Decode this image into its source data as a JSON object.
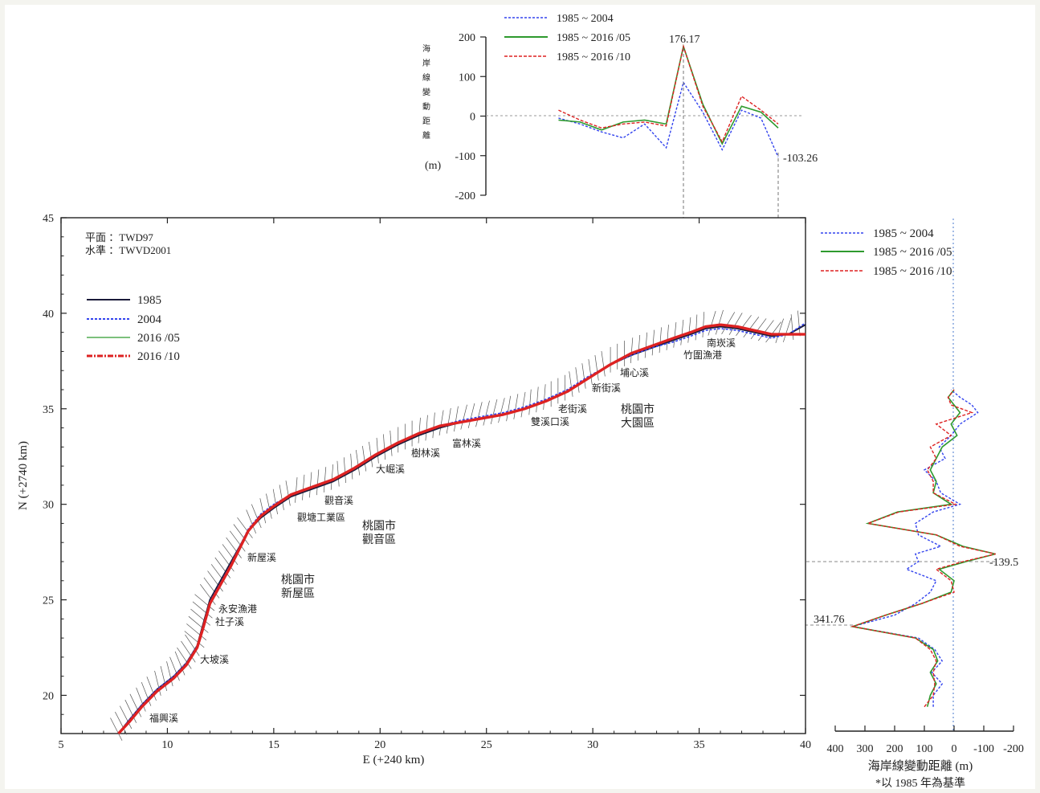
{
  "top_chart": {
    "ylabel_glyphs": [
      "海",
      "岸",
      "線",
      "變",
      "動",
      "距",
      "離"
    ],
    "ylabel_unit": "(m)",
    "y_ticks": [
      "200",
      "100",
      "0",
      "-100",
      "-200"
    ],
    "ylim": [
      -200,
      200
    ],
    "legend": [
      "1985 ~ 2004",
      "1985 ~ 2016 /05",
      "1985 ~ 2016 /10"
    ],
    "annotation_max": "176.17",
    "annotation_min": "-103.26"
  },
  "map_chart": {
    "datum_plane": "平面 ：TWD97",
    "datum_level": "水準 ：TWVD2001",
    "xlabel": "E (+240 km)",
    "ylabel": "N (+2740 km)",
    "x_ticks": [
      "5",
      "10",
      "15",
      "20",
      "25",
      "30",
      "35",
      "40"
    ],
    "y_ticks": [
      "20",
      "25",
      "30",
      "35",
      "40",
      "45"
    ],
    "xlim": [
      5,
      40
    ],
    "ylim": [
      18,
      45
    ],
    "legend": [
      "1985",
      "2004",
      "2016 /05",
      "2016 /10"
    ],
    "place_labels": {
      "yongan": "永安漁港",
      "xinwu": "新屋溪",
      "guanyin_river": "觀音溪",
      "daku": "大崛溪",
      "shulin": "樹林溪",
      "fulin": "富林溪",
      "shuangxi": "雙溪口溪",
      "laojie": "老街溪",
      "xinjie": "新街溪",
      "kengkou": "埔心溪",
      "nankan": "南崁溪",
      "zhuwei": "竹圍漁港",
      "shezi": "社子溪",
      "dahan": "大坡溪",
      "fuxing": "福興溪",
      "industrial": "觀塘工業區",
      "dayuan_1": "桃園市",
      "dayuan_2": "大園區",
      "guanyin_1": "桃園市",
      "guanyin_2": "觀音區",
      "xinwu_1": "桃園市",
      "xinwu_2": "新屋區"
    }
  },
  "side_chart": {
    "legend": [
      "1985 ~ 2004",
      "1985 ~ 2016 /05",
      "1985 ~ 2016 /10"
    ],
    "x_ticks": [
      "400",
      "300",
      "200",
      "100",
      "0",
      "-100",
      "-200"
    ],
    "xlabel": "海岸線變動距離 (m)",
    "note": "*以 1985 年為基準",
    "annotation_neg": "-139.5",
    "annotation_pos": "341.76"
  },
  "colors": {
    "c1985": "#1a1a3a",
    "c2004": "#3344ee",
    "c201605": "#2e9a2e",
    "c201610": "#dd2222",
    "hatch": "#555555"
  },
  "chart_data": [
    {
      "type": "line",
      "title": "",
      "xlabel": "",
      "ylabel": "海岸線變動距離 (m)",
      "ylim": [
        -200,
        200
      ],
      "x": [
        28.5,
        29.5,
        30.5,
        31.5,
        32.5,
        33.5,
        34.3,
        35.2,
        36.1,
        37.0,
        37.9,
        38.7
      ],
      "series": [
        {
          "name": "1985 ~ 2004",
          "values": [
            -5,
            -20,
            -40,
            -55,
            -20,
            -80,
            85,
            10,
            -85,
            15,
            -5,
            -103.26
          ]
        },
        {
          "name": "1985 ~ 2016 /05",
          "values": [
            -10,
            -15,
            -35,
            -15,
            -10,
            -20,
            176.17,
            30,
            -70,
            25,
            10,
            -30
          ]
        },
        {
          "name": "1985 ~ 2016 /10",
          "values": [
            15,
            -10,
            -30,
            -20,
            -15,
            -25,
            176.17,
            25,
            -65,
            50,
            15,
            -20
          ]
        }
      ]
    },
    {
      "type": "line",
      "title": "",
      "xlabel": "E (+240 km)",
      "ylabel": "N (+2740 km)",
      "xlim": [
        5,
        40
      ],
      "ylim": [
        18,
        45
      ],
      "x": [
        7.7,
        8.2,
        8.8,
        9.5,
        10.3,
        10.9,
        11.4,
        11.7,
        12.0,
        12.5,
        13.0,
        13.4,
        13.8,
        14.4,
        15.0,
        15.8,
        16.8,
        17.8,
        18.8,
        19.8,
        20.8,
        21.8,
        22.8,
        23.8,
        24.8,
        25.8,
        26.8,
        27.8,
        28.8,
        29.8,
        30.8,
        31.8,
        32.8,
        33.8,
        34.6,
        35.3,
        36.0,
        36.8,
        37.6,
        38.4,
        39.2,
        40.0
      ],
      "series": [
        {
          "name": "1985",
          "values": [
            18.0,
            18.7,
            19.5,
            20.3,
            21.0,
            21.7,
            22.6,
            23.8,
            25.0,
            26.0,
            27.0,
            27.8,
            28.6,
            29.3,
            29.8,
            30.4,
            30.8,
            31.2,
            31.8,
            32.5,
            33.1,
            33.6,
            34.0,
            34.3,
            34.5,
            34.7,
            35.0,
            35.4,
            35.9,
            36.6,
            37.3,
            37.8,
            38.2,
            38.6,
            38.9,
            39.2,
            39.3,
            39.2,
            39.0,
            38.8,
            38.9,
            39.4
          ]
        },
        {
          "name": "2004",
          "values": [
            18.0,
            18.7,
            19.5,
            20.3,
            21.0,
            21.7,
            22.6,
            23.7,
            24.9,
            25.9,
            26.9,
            27.8,
            28.7,
            29.5,
            30.0,
            30.5,
            30.9,
            31.3,
            31.9,
            32.6,
            33.2,
            33.7,
            34.1,
            34.4,
            34.6,
            34.8,
            35.1,
            35.5,
            36.0,
            36.7,
            37.3,
            37.8,
            38.2,
            38.5,
            38.8,
            39.1,
            39.2,
            39.1,
            38.9,
            38.7,
            38.9,
            39.5
          ]
        },
        {
          "name": "2016 /05",
          "values": [
            18.0,
            18.6,
            19.4,
            20.2,
            20.9,
            21.6,
            22.5,
            23.6,
            24.8,
            25.8,
            26.8,
            27.7,
            28.6,
            29.4,
            29.9,
            30.5,
            30.9,
            31.3,
            31.9,
            32.6,
            33.2,
            33.7,
            34.1,
            34.3,
            34.5,
            34.7,
            35.0,
            35.4,
            35.9,
            36.6,
            37.3,
            37.9,
            38.3,
            38.7,
            39.0,
            39.3,
            39.4,
            39.3,
            39.1,
            38.9,
            38.9,
            38.9
          ]
        },
        {
          "name": "2016 /10",
          "values": [
            18.0,
            18.6,
            19.4,
            20.2,
            20.9,
            21.6,
            22.5,
            23.6,
            24.8,
            25.8,
            26.8,
            27.7,
            28.6,
            29.4,
            29.9,
            30.5,
            30.9,
            31.3,
            31.9,
            32.6,
            33.2,
            33.7,
            34.1,
            34.3,
            34.5,
            34.7,
            35.0,
            35.4,
            35.9,
            36.6,
            37.3,
            37.9,
            38.3,
            38.7,
            39.0,
            39.3,
            39.4,
            39.3,
            39.1,
            38.9,
            38.9,
            38.9
          ]
        }
      ]
    },
    {
      "type": "line",
      "title": "",
      "xlabel": "海岸線變動距離 (m)",
      "ylabel": "",
      "xlim": [
        400,
        -200
      ],
      "y": [
        19.4,
        20.0,
        20.6,
        21.2,
        21.8,
        22.4,
        23.0,
        23.6,
        24.2,
        24.8,
        25.4,
        26.0,
        26.6,
        27.0,
        27.4,
        27.8,
        28.4,
        29.0,
        29.6,
        30.0,
        30.6,
        31.2,
        31.8,
        32.4,
        33.0,
        33.6,
        34.2,
        34.8,
        35.2,
        35.6,
        36.0
      ],
      "series": [
        {
          "name": "1985 ~ 2004",
          "values": [
            70,
            70,
            40,
            75,
            40,
            65,
            120,
            341.76,
            200,
            130,
            80,
            60,
            160,
            120,
            130,
            45,
            120,
            130,
            70,
            -20,
            45,
            60,
            100,
            30,
            50,
            10,
            -20,
            -80,
            -60,
            -20,
            10
          ]
        },
        {
          "name": "1985 ~ 2016 /05",
          "values": [
            90,
            80,
            60,
            80,
            55,
            70,
            130,
            341.76,
            230,
            110,
            10,
            0,
            50,
            -40,
            -139.5,
            -30,
            60,
            290,
            190,
            10,
            70,
            60,
            80,
            60,
            40,
            -10,
            10,
            -20,
            0,
            20,
            0
          ]
        },
        {
          "name": "1985 ~ 2016 /10",
          "values": [
            100,
            70,
            65,
            70,
            60,
            80,
            130,
            341.76,
            230,
            110,
            0,
            10,
            60,
            -30,
            -139.5,
            -20,
            60,
            290,
            185,
            -5,
            70,
            70,
            90,
            60,
            80,
            10,
            60,
            -60,
            10,
            20,
            0
          ]
        }
      ]
    }
  ]
}
